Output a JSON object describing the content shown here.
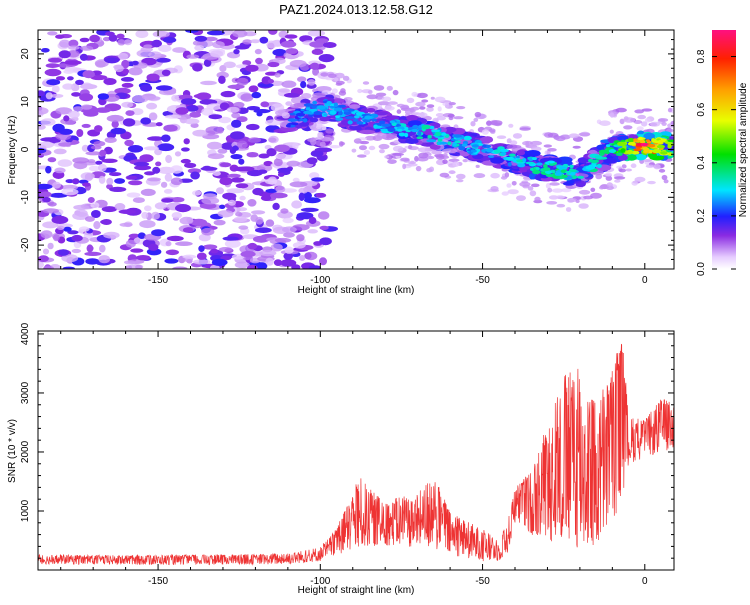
{
  "figure": {
    "title": "PAZ1.2024.013.12.58.G12"
  },
  "chart_data": [
    {
      "type": "heatmap",
      "xlabel": "Height of straight line (km)",
      "ylabel": "Frequency (Hz)",
      "xlim": [
        -187,
        9
      ],
      "ylim": [
        -25,
        25
      ],
      "xticks": [
        -150,
        -100,
        -50,
        0
      ],
      "yticks": [
        -20,
        -10,
        0,
        10,
        20
      ],
      "colorbar": {
        "label": "Normalized spectral amplitude",
        "range": [
          0,
          0.9
        ],
        "ticks": [
          0.0,
          0.2,
          0.4,
          0.6,
          0.8
        ]
      },
      "signal_ridge": {
        "description_points_x": [
          -110,
          -100,
          -90,
          -80,
          -70,
          -60,
          -50,
          -40,
          -30,
          -20,
          -10,
          0,
          8
        ],
        "frequency_y": [
          6,
          9,
          7,
          5,
          4,
          2,
          0,
          -2,
          -4,
          -5,
          0,
          1,
          0.5
        ],
        "peak_amplitude": [
          0.25,
          0.3,
          0.3,
          0.3,
          0.35,
          0.35,
          0.3,
          0.35,
          0.4,
          0.35,
          0.4,
          0.85,
          0.6
        ]
      },
      "noise_region": {
        "x_range": [
          -187,
          -100
        ],
        "y_range": [
          -25,
          25
        ],
        "typical_amplitude": 0.12
      }
    },
    {
      "type": "line",
      "xlabel": "Height of straight line (km)",
      "ylabel": "SNR (10 * v/v)",
      "xlim": [
        -187,
        9
      ],
      "ylim": [
        0,
        4050
      ],
      "xticks": [
        -150,
        -100,
        -50,
        0
      ],
      "yticks": [
        1000,
        2000,
        3000,
        4000
      ],
      "color": "#ee3333",
      "envelope": {
        "x": [
          -187,
          -160,
          -130,
          -110,
          -100,
          -95,
          -88,
          -85,
          -80,
          -75,
          -70,
          -65,
          -60,
          -55,
          -50,
          -45,
          -42,
          -40,
          -35,
          -30,
          -25,
          -20,
          -15,
          -10,
          -7,
          -5,
          0,
          5,
          9
        ],
        "ymax": [
          260,
          250,
          260,
          280,
          400,
          700,
          1600,
          1400,
          1150,
          1250,
          1300,
          1600,
          1000,
          850,
          700,
          500,
          900,
          1400,
          1700,
          2500,
          3300,
          3500,
          2900,
          3400,
          4050,
          2600,
          2550,
          2900,
          2850
        ],
        "ymin": [
          100,
          90,
          90,
          100,
          150,
          250,
          350,
          400,
          420,
          400,
          380,
          350,
          250,
          200,
          150,
          150,
          300,
          800,
          600,
          500,
          400,
          350,
          300,
          800,
          1200,
          1800,
          1900,
          2000,
          2050
        ]
      }
    }
  ]
}
